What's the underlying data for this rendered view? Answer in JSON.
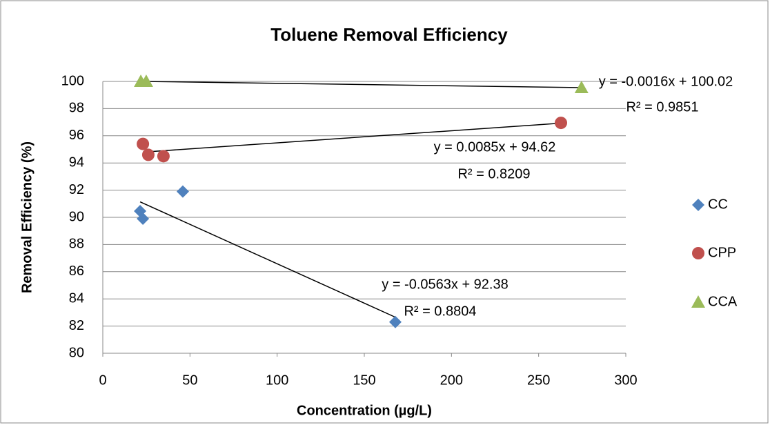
{
  "chart_data": {
    "type": "scatter",
    "title": "Toluene Removal Efficiency",
    "x_label": "Concentration (µg/L)",
    "y_label": "Removal Efficiency (%)",
    "xlim": [
      0,
      300
    ],
    "xticks": [
      0,
      50,
      100,
      150,
      200,
      250,
      300
    ],
    "ylim": [
      80,
      100
    ],
    "yticks": [
      80,
      82,
      84,
      86,
      88,
      90,
      92,
      94,
      96,
      98,
      100
    ],
    "grid": true,
    "legend": "right",
    "trendline": "linear",
    "series": [
      {
        "name": "CC",
        "color": "#4f81bd",
        "marker": "diamond",
        "x": [
          21.4,
          23,
          45.9,
          167.8
        ],
        "values": [
          90.46,
          89.9,
          91.9,
          82.3
        ]
      },
      {
        "name": "CPP",
        "color": "#c0504d",
        "marker": "circle",
        "x": [
          23,
          26.1,
          34.8,
          262.8
        ],
        "values": [
          95.4,
          94.6,
          94.5,
          96.95
        ]
      },
      {
        "name": "CCA",
        "color": "#9bbb59",
        "marker": "triangle",
        "x": [
          21.8,
          24.9,
          274.6
        ],
        "values": [
          100,
          100,
          99.54
        ]
      }
    ],
    "annotations": [
      [
        "y = -0.0563x + 92.38",
        "R² = 0.8804"
      ],
      [
        "y = 0.0085x + 94.62",
        "R² = 0.8209"
      ],
      [
        "y = -0.0016x + 100.02",
        "R² = 0.9851"
      ]
    ]
  }
}
